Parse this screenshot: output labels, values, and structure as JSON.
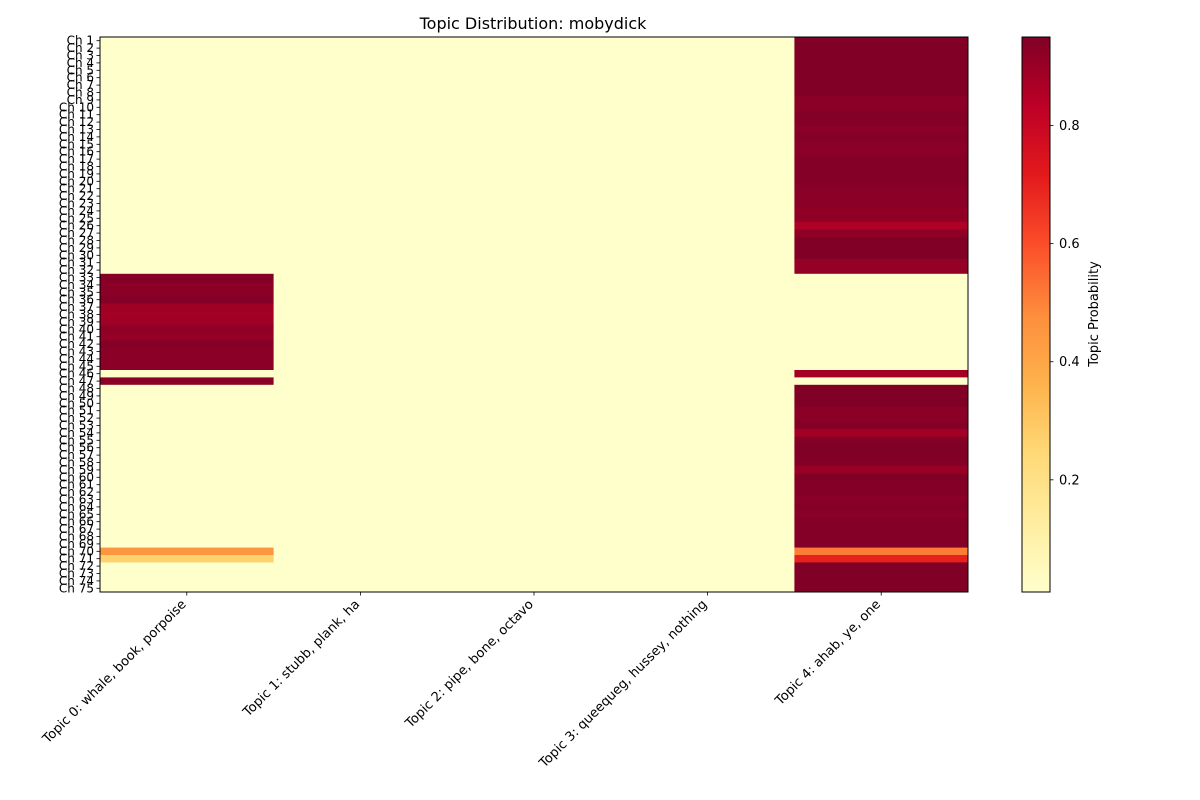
{
  "chart_data": {
    "type": "heatmap",
    "title": "Topic Distribution: mobydick",
    "xlabel": "",
    "ylabel": "",
    "colorbar_label": "Topic Probability",
    "colormap": "YlOrRd",
    "colorbar_range": [
      0.01,
      0.95
    ],
    "colorbar_ticks": [
      0.2,
      0.4,
      0.6,
      0.8
    ],
    "colorbar_tick_labels": [
      "0.2",
      "0.4",
      "0.6",
      "0.8"
    ],
    "columns": [
      "Topic 0: whale, book, porpoise",
      "Topic 1: stubb, plank, ha",
      "Topic 2: pipe, bone, octavo",
      "Topic 3: queequeg, hussey, nothing",
      "Topic 4: ahab, ye, one"
    ],
    "rows": [
      "Ch 1",
      "Ch 2",
      "Ch 3",
      "Ch 4",
      "Ch 5",
      "Ch 6",
      "Ch 7",
      "Ch 8",
      "Ch 9",
      "Ch 10",
      "Ch 11",
      "Ch 12",
      "Ch 13",
      "Ch 14",
      "Ch 15",
      "Ch 16",
      "Ch 17",
      "Ch 18",
      "Ch 19",
      "Ch 20",
      "Ch 21",
      "Ch 22",
      "Ch 23",
      "Ch 24",
      "Ch 25",
      "Ch 26",
      "Ch 27",
      "Ch 28",
      "Ch 29",
      "Ch 30",
      "Ch 31",
      "Ch 32",
      "Ch 33",
      "Ch 34",
      "Ch 35",
      "Ch 36",
      "Ch 37",
      "Ch 38",
      "Ch 39",
      "Ch 40",
      "Ch 41",
      "Ch 42",
      "Ch 43",
      "Ch 44",
      "Ch 45",
      "Ch 46",
      "Ch 47",
      "Ch 48",
      "Ch 49",
      "Ch 50",
      "Ch 51",
      "Ch 52",
      "Ch 53",
      "Ch 54",
      "Ch 55",
      "Ch 56",
      "Ch 57",
      "Ch 58",
      "Ch 59",
      "Ch 60",
      "Ch 61",
      "Ch 62",
      "Ch 63",
      "Ch 64",
      "Ch 65",
      "Ch 66",
      "Ch 67",
      "Ch 68",
      "Ch 69",
      "Ch 70",
      "Ch 71",
      "Ch 72",
      "Ch 73",
      "Ch 74",
      "Ch 75"
    ],
    "values": [
      [
        0.01,
        0.01,
        0.01,
        0.01,
        0.95
      ],
      [
        0.01,
        0.01,
        0.01,
        0.01,
        0.95
      ],
      [
        0.01,
        0.01,
        0.01,
        0.01,
        0.95
      ],
      [
        0.01,
        0.01,
        0.01,
        0.01,
        0.95
      ],
      [
        0.01,
        0.01,
        0.01,
        0.01,
        0.95
      ],
      [
        0.01,
        0.01,
        0.01,
        0.01,
        0.95
      ],
      [
        0.01,
        0.01,
        0.01,
        0.01,
        0.95
      ],
      [
        0.01,
        0.01,
        0.01,
        0.01,
        0.95
      ],
      [
        0.01,
        0.01,
        0.01,
        0.01,
        0.93
      ],
      [
        0.01,
        0.01,
        0.01,
        0.01,
        0.93
      ],
      [
        0.01,
        0.01,
        0.01,
        0.01,
        0.94
      ],
      [
        0.01,
        0.01,
        0.01,
        0.01,
        0.94
      ],
      [
        0.01,
        0.01,
        0.01,
        0.01,
        0.93
      ],
      [
        0.01,
        0.01,
        0.01,
        0.01,
        0.94
      ],
      [
        0.01,
        0.01,
        0.01,
        0.01,
        0.93
      ],
      [
        0.01,
        0.01,
        0.01,
        0.01,
        0.93
      ],
      [
        0.01,
        0.01,
        0.01,
        0.01,
        0.94
      ],
      [
        0.01,
        0.01,
        0.01,
        0.01,
        0.94
      ],
      [
        0.01,
        0.01,
        0.01,
        0.01,
        0.94
      ],
      [
        0.01,
        0.01,
        0.01,
        0.01,
        0.94
      ],
      [
        0.01,
        0.01,
        0.01,
        0.01,
        0.93
      ],
      [
        0.01,
        0.01,
        0.01,
        0.01,
        0.93
      ],
      [
        0.01,
        0.01,
        0.01,
        0.01,
        0.93
      ],
      [
        0.01,
        0.01,
        0.01,
        0.01,
        0.92
      ],
      [
        0.01,
        0.01,
        0.01,
        0.01,
        0.92
      ],
      [
        0.01,
        0.01,
        0.01,
        0.01,
        0.86
      ],
      [
        0.01,
        0.01,
        0.01,
        0.01,
        0.92
      ],
      [
        0.01,
        0.01,
        0.01,
        0.01,
        0.95
      ],
      [
        0.01,
        0.01,
        0.01,
        0.01,
        0.95
      ],
      [
        0.01,
        0.01,
        0.01,
        0.01,
        0.95
      ],
      [
        0.01,
        0.01,
        0.01,
        0.01,
        0.91
      ],
      [
        0.01,
        0.01,
        0.01,
        0.01,
        0.91
      ],
      [
        0.94,
        0.01,
        0.01,
        0.01,
        0.01
      ],
      [
        0.93,
        0.01,
        0.01,
        0.01,
        0.01
      ],
      [
        0.93,
        0.01,
        0.01,
        0.01,
        0.01
      ],
      [
        0.94,
        0.01,
        0.01,
        0.01,
        0.01
      ],
      [
        0.89,
        0.01,
        0.01,
        0.01,
        0.01
      ],
      [
        0.88,
        0.01,
        0.01,
        0.01,
        0.01
      ],
      [
        0.89,
        0.01,
        0.01,
        0.01,
        0.01
      ],
      [
        0.92,
        0.01,
        0.01,
        0.01,
        0.01
      ],
      [
        0.91,
        0.01,
        0.01,
        0.01,
        0.01
      ],
      [
        0.94,
        0.01,
        0.01,
        0.01,
        0.01
      ],
      [
        0.93,
        0.01,
        0.01,
        0.01,
        0.01
      ],
      [
        0.93,
        0.01,
        0.01,
        0.01,
        0.01
      ],
      [
        0.93,
        0.01,
        0.01,
        0.01,
        0.01
      ],
      [
        0.01,
        0.01,
        0.01,
        0.01,
        0.88
      ],
      [
        0.93,
        0.01,
        0.01,
        0.01,
        0.01
      ],
      [
        0.01,
        0.01,
        0.01,
        0.01,
        0.95
      ],
      [
        0.01,
        0.01,
        0.01,
        0.01,
        0.95
      ],
      [
        0.01,
        0.01,
        0.01,
        0.01,
        0.95
      ],
      [
        0.01,
        0.01,
        0.01,
        0.01,
        0.93
      ],
      [
        0.01,
        0.01,
        0.01,
        0.01,
        0.93
      ],
      [
        0.01,
        0.01,
        0.01,
        0.01,
        0.94
      ],
      [
        0.01,
        0.01,
        0.01,
        0.01,
        0.88
      ],
      [
        0.01,
        0.01,
        0.01,
        0.01,
        0.94
      ],
      [
        0.01,
        0.01,
        0.01,
        0.01,
        0.95
      ],
      [
        0.01,
        0.01,
        0.01,
        0.01,
        0.95
      ],
      [
        0.01,
        0.01,
        0.01,
        0.01,
        0.94
      ],
      [
        0.01,
        0.01,
        0.01,
        0.01,
        0.9
      ],
      [
        0.01,
        0.01,
        0.01,
        0.01,
        0.95
      ],
      [
        0.01,
        0.01,
        0.01,
        0.01,
        0.94
      ],
      [
        0.01,
        0.01,
        0.01,
        0.01,
        0.94
      ],
      [
        0.01,
        0.01,
        0.01,
        0.01,
        0.93
      ],
      [
        0.01,
        0.01,
        0.01,
        0.01,
        0.94
      ],
      [
        0.01,
        0.01,
        0.01,
        0.01,
        0.93
      ],
      [
        0.01,
        0.01,
        0.01,
        0.01,
        0.94
      ],
      [
        0.01,
        0.01,
        0.01,
        0.01,
        0.94
      ],
      [
        0.01,
        0.01,
        0.01,
        0.01,
        0.94
      ],
      [
        0.01,
        0.01,
        0.01,
        0.01,
        0.94
      ],
      [
        0.45,
        0.01,
        0.01,
        0.01,
        0.51
      ],
      [
        0.27,
        0.01,
        0.01,
        0.01,
        0.7
      ],
      [
        0.01,
        0.01,
        0.01,
        0.01,
        0.95
      ],
      [
        0.01,
        0.01,
        0.01,
        0.01,
        0.95
      ],
      [
        0.01,
        0.01,
        0.01,
        0.01,
        0.95
      ],
      [
        0.01,
        0.01,
        0.01,
        0.01,
        0.95
      ]
    ]
  }
}
